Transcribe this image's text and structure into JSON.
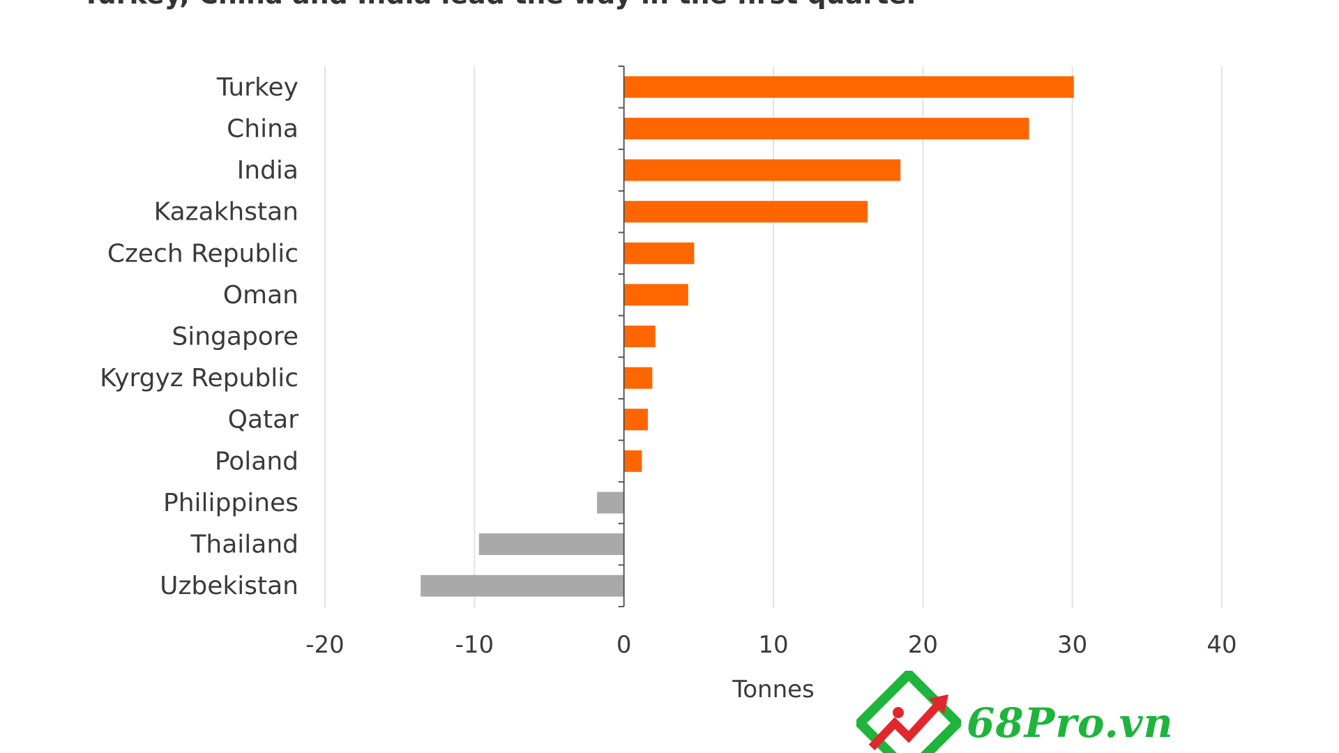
{
  "title": "Turkey, China and India lead the way in the first quarter",
  "watermark": {
    "text": "68Pro.vn",
    "colors": {
      "green": "#1fb43c",
      "red": "#e2262b"
    }
  },
  "chart_data": {
    "type": "bar",
    "orientation": "horizontal",
    "categories": [
      "Turkey",
      "China",
      "India",
      "Kazakhstan",
      "Czech Republic",
      "Oman",
      "Singapore",
      "Kyrgyz Republic",
      "Qatar",
      "Poland",
      "Philippines",
      "Thailand",
      "Uzbekistan"
    ],
    "values": [
      30.1,
      27.1,
      18.5,
      16.3,
      4.7,
      4.3,
      2.1,
      1.9,
      1.6,
      1.2,
      -1.8,
      -9.7,
      -13.6
    ],
    "xlabel": "Tonnes",
    "ylabel": "",
    "xlim": [
      -20,
      40
    ],
    "xticks": [
      -20,
      -10,
      0,
      10,
      20,
      30,
      40
    ],
    "xtick_labels": [
      "-20",
      "-10",
      "0",
      "10",
      "20",
      "30",
      "40"
    ],
    "grid": "vertical",
    "colors": {
      "positive": "#ff6600",
      "negative": "#a9a9a9",
      "grid": "#e2e2e2",
      "axis": "#555555"
    }
  }
}
